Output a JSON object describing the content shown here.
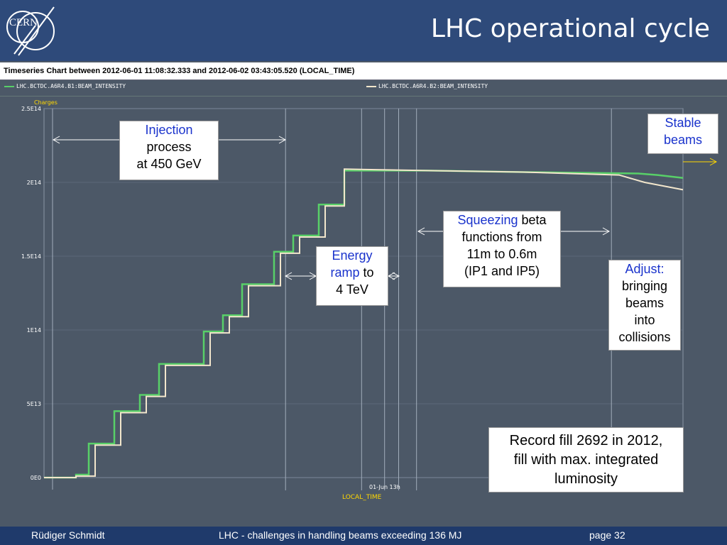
{
  "slide": {
    "title": "LHC operational cycle",
    "logo_text": "CERN"
  },
  "chart": {
    "window_title": "Timeseries Chart between 2012-06-01 11:08:32.333 and 2012-06-02 03:43:05.520 (LOCAL_TIME)",
    "legend": [
      {
        "label": "LHC.BCTDC.A6R4.B1:BEAM_INTENSITY",
        "color": "#58d068"
      },
      {
        "label": "LHC.BCTDC.A6R4.B2:BEAM_INTENSITY",
        "color": "#f2e6cc"
      }
    ],
    "y_axis_unit": "Charges",
    "y_ticks": [
      "2.5E14",
      "2E14",
      "1.5E14",
      "1E14",
      "5E13",
      "0E0"
    ],
    "x_tick": "01-Jun 13h",
    "x_label": "LOCAL_TIME",
    "colors": {
      "background": "#4c5867",
      "grid": "#8a96a6",
      "axis_text": "#ffffff",
      "unit_text": "#ffd700"
    }
  },
  "chart_data": {
    "type": "line",
    "y_unit": "Charges",
    "ylim": [
      0,
      250000000000000.0
    ],
    "xlabel": "LOCAL_TIME",
    "x_ticks": [
      "01-Jun 13h"
    ],
    "grid": true,
    "legend_position": "top",
    "series": [
      {
        "name": "LHC.BCTDC.A6R4.B1:BEAM_INTENSITY",
        "profile": [
          {
            "t": 0.0,
            "y": 0.0
          },
          {
            "t": 0.05,
            "y": 2000000000000.0
          },
          {
            "t": 0.07,
            "y": 23000000000000.0
          },
          {
            "t": 0.11,
            "y": 45000000000000.0
          },
          {
            "t": 0.15,
            "y": 56000000000000.0
          },
          {
            "t": 0.18,
            "y": 77000000000000.0
          },
          {
            "t": 0.25,
            "y": 99000000000000.0
          },
          {
            "t": 0.28,
            "y": 110000000000000.0
          },
          {
            "t": 0.31,
            "y": 131000000000000.0
          },
          {
            "t": 0.36,
            "y": 153000000000000.0
          },
          {
            "t": 0.39,
            "y": 164000000000000.0
          },
          {
            "t": 0.43,
            "y": 185000000000000.0
          },
          {
            "t": 0.47,
            "y": 208000000000000.0
          },
          {
            "t": 0.6,
            "y": 208000000000000.0
          },
          {
            "t": 0.75,
            "y": 207000000000000.0
          },
          {
            "t": 0.93,
            "y": 206000000000000.0
          },
          {
            "t": 0.96,
            "y": 205000000000000.0
          },
          {
            "t": 1.0,
            "y": 203000000000000.0
          }
        ]
      },
      {
        "name": "LHC.BCTDC.A6R4.B2:BEAM_INTENSITY",
        "profile": [
          {
            "t": 0.0,
            "y": 0.0
          },
          {
            "t": 0.05,
            "y": 1000000000000.0
          },
          {
            "t": 0.08,
            "y": 22000000000000.0
          },
          {
            "t": 0.12,
            "y": 44000000000000.0
          },
          {
            "t": 0.16,
            "y": 55000000000000.0
          },
          {
            "t": 0.19,
            "y": 76000000000000.0
          },
          {
            "t": 0.26,
            "y": 98000000000000.0
          },
          {
            "t": 0.29,
            "y": 109000000000000.0
          },
          {
            "t": 0.32,
            "y": 130000000000000.0
          },
          {
            "t": 0.37,
            "y": 152000000000000.0
          },
          {
            "t": 0.4,
            "y": 163000000000000.0
          },
          {
            "t": 0.44,
            "y": 184000000000000.0
          },
          {
            "t": 0.47,
            "y": 209000000000000.0
          },
          {
            "t": 0.6,
            "y": 208000000000000.0
          },
          {
            "t": 0.75,
            "y": 207000000000000.0
          },
          {
            "t": 0.9,
            "y": 205000000000000.0
          },
          {
            "t": 0.94,
            "y": 200000000000000.0
          },
          {
            "t": 1.0,
            "y": 195000000000000.0
          }
        ]
      }
    ]
  },
  "annotations": {
    "injection": {
      "line1": "Injection",
      "line2": "process",
      "line3": "at 450 GeV"
    },
    "ramp": {
      "line1a": "Energy",
      "line2a": "ramp",
      "line2b": " to",
      "line3": "4 TeV"
    },
    "squeeze": {
      "line1a": "Squeezing",
      "line1b": " beta",
      "line2": "functions from",
      "line3": "11m to 0.6m",
      "line4": "(IP1 and IP5)"
    },
    "adjust": {
      "line1": "Adjust:",
      "line2": "bringing",
      "line3": "beams",
      "line4": "into",
      "line5": "collisions"
    },
    "stable": {
      "line1": "Stable",
      "line2": "beams"
    },
    "record": {
      "line1": "Record fill 2692 in 2012,",
      "line2": "fill with max. integrated",
      "line3": "luminosity"
    }
  },
  "footer": {
    "author": "Rüdiger Schmidt",
    "talk": "LHC - challenges in handling beams exceeding 136 MJ",
    "page": "page 32"
  }
}
